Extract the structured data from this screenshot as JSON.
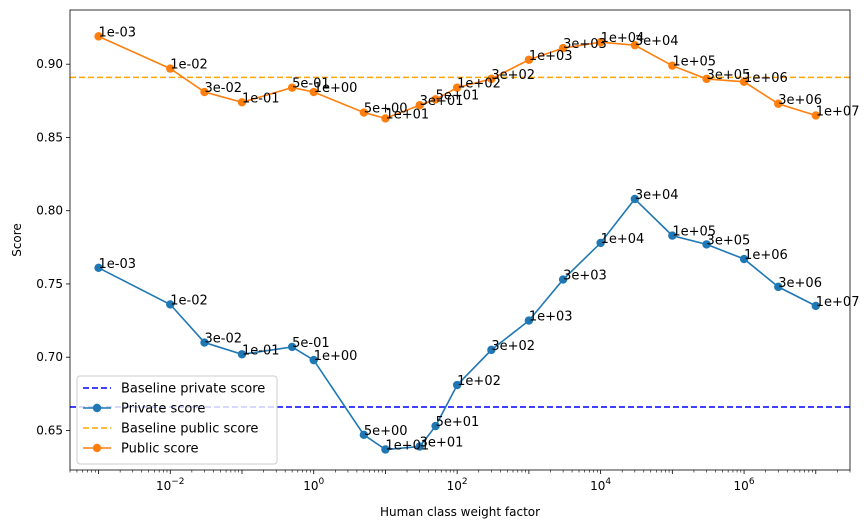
{
  "chart_data": {
    "type": "line",
    "title": "",
    "xlabel": "Human class weight factor",
    "ylabel": "Score",
    "xscale": "log",
    "xlim": [
      0.0004,
      30000000
    ],
    "ylim": [
      0.623,
      0.937
    ],
    "x_ticks": [
      {
        "value": 0.01,
        "base": "10",
        "exp": "−2"
      },
      {
        "value": 1,
        "base": "10",
        "exp": "0"
      },
      {
        "value": 100,
        "base": "10",
        "exp": "2"
      },
      {
        "value": 10000,
        "base": "10",
        "exp": "4"
      },
      {
        "value": 1000000,
        "base": "10",
        "exp": "6"
      }
    ],
    "y_ticks": [
      "0.65",
      "0.70",
      "0.75",
      "0.80",
      "0.85",
      "0.90"
    ],
    "grid": false,
    "legend_position": "lower-left",
    "x": [
      0.001,
      0.01,
      0.03,
      0.1,
      0.5,
      1,
      5,
      10,
      30,
      50,
      100,
      300,
      1000,
      3000,
      10000,
      30000,
      100000,
      300000,
      1000000,
      3000000,
      10000000
    ],
    "point_labels": [
      "1e-03",
      "1e-02",
      "3e-02",
      "1e-01",
      "5e-01",
      "1e+00",
      "5e+00",
      "1e+01",
      "3e+01",
      "5e+01",
      "1e+02",
      "3e+02",
      "1e+03",
      "3e+03",
      "1e+04",
      "3e+04",
      "1e+05",
      "3e+05",
      "1e+06",
      "3e+06",
      "1e+07"
    ],
    "baselines": [
      {
        "name": "Baseline private score",
        "value": 0.666,
        "color": "#0000ff"
      },
      {
        "name": "Baseline public score",
        "value": 0.891,
        "color": "#ffa500"
      }
    ],
    "series": [
      {
        "name": "Private score",
        "color": "#1f77b4",
        "values": [
          0.761,
          0.736,
          0.71,
          0.702,
          0.707,
          0.698,
          0.647,
          0.637,
          0.639,
          0.653,
          0.681,
          0.705,
          0.725,
          0.753,
          0.778,
          0.808,
          0.783,
          0.777,
          0.767,
          0.748,
          0.735
        ]
      },
      {
        "name": "Public score",
        "color": "#ff7f0e",
        "values": [
          0.919,
          0.897,
          0.881,
          0.874,
          0.884,
          0.881,
          0.867,
          0.863,
          0.872,
          0.876,
          0.884,
          0.89,
          0.903,
          0.911,
          0.915,
          0.913,
          0.899,
          0.89,
          0.888,
          0.873,
          0.865
        ]
      }
    ],
    "legend_order": [
      "Baseline private score",
      "Private score",
      "Baseline public score",
      "Public score"
    ]
  }
}
